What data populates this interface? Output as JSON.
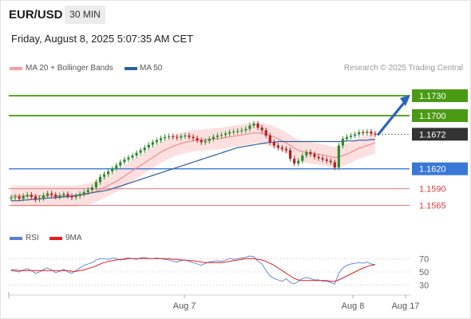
{
  "header": {
    "symbol": "EUR/USD",
    "timeframe": "30 MIN",
    "datetime": "Friday, August 8, 2025 5:07:35 AM CET"
  },
  "legend": {
    "ma20_label": "MA 20 + Bollinger Bands",
    "ma50_label": "MA 50",
    "ma20_color": "#f28b8b",
    "ma50_color": "#2e5fa0",
    "credit": "Research © 2025 Trading Central"
  },
  "rsi_legend": {
    "rsi_label": "RSI",
    "ma_label": "9MA",
    "rsi_color": "#5b7fd6",
    "ma_color": "#e01f1f"
  },
  "colors": {
    "up_candle": "#2c8c2c",
    "down_candle": "#b02020",
    "resistance": "#5aa51e",
    "support": "#3a78d8",
    "lower_support": "#e37b7b",
    "current": "#333333",
    "arrow": "#2863c4"
  },
  "chart_data": [
    {
      "type": "candlestick",
      "pair": "EUR/USD",
      "timeframe": "30 MIN",
      "x_ticks": [
        "Aug 7",
        "Aug 8",
        "Aug 17"
      ],
      "levels": [
        {
          "value": 1.173,
          "label": "1.1730",
          "kind": "resistance"
        },
        {
          "value": 1.17,
          "label": "1.1700",
          "kind": "resistance"
        },
        {
          "value": 1.1672,
          "label": "1.1672",
          "kind": "current"
        },
        {
          "value": 1.162,
          "label": "1.1620",
          "kind": "support"
        },
        {
          "value": 1.159,
          "label": "1.1590",
          "kind": "support"
        },
        {
          "value": 1.1565,
          "label": "1.1565",
          "kind": "support"
        }
      ],
      "ylim": [
        1.155,
        1.176
      ],
      "close": [
        1.1577,
        1.1578,
        1.1575,
        1.1579,
        1.1581,
        1.1578,
        1.1574,
        1.1576,
        1.158,
        1.1583,
        1.1581,
        1.1578,
        1.158,
        1.1582,
        1.1579,
        1.1577,
        1.1579,
        1.1582,
        1.1585,
        1.1588,
        1.1592,
        1.16,
        1.1608,
        1.1612,
        1.1616,
        1.162,
        1.1625,
        1.163,
        1.1634,
        1.1637,
        1.164,
        1.1644,
        1.1648,
        1.1652,
        1.1656,
        1.166,
        1.1663,
        1.1666,
        1.1668,
        1.1669,
        1.1668,
        1.1667,
        1.1669,
        1.167,
        1.1668,
        1.1666,
        1.1663,
        1.166,
        1.1662,
        1.1665,
        1.1668,
        1.167,
        1.1671,
        1.1673,
        1.1675,
        1.1676,
        1.1677,
        1.1678,
        1.168,
        1.1685,
        1.1688,
        1.1682,
        1.1678,
        1.167,
        1.166,
        1.1655,
        1.1652,
        1.165,
        1.1648,
        1.1635,
        1.1628,
        1.1632,
        1.164,
        1.1645,
        1.1642,
        1.1638,
        1.1636,
        1.1634,
        1.1632,
        1.163,
        1.1622,
        1.1655,
        1.1665,
        1.1668,
        1.167,
        1.1672,
        1.1675,
        1.1674,
        1.1676,
        1.1673,
        1.1672
      ],
      "ma20": [
        1.1579,
        1.1579,
        1.1579,
        1.1579,
        1.1579,
        1.1579,
        1.1579,
        1.1579,
        1.1579,
        1.1579,
        1.1579,
        1.1579,
        1.1579,
        1.1579,
        1.1579,
        1.1579,
        1.1579,
        1.158,
        1.1581,
        1.1582,
        1.1584,
        1.1586,
        1.1589,
        1.1592,
        1.1595,
        1.1598,
        1.1601,
        1.1605,
        1.1609,
        1.1613,
        1.1617,
        1.1621,
        1.1625,
        1.1629,
        1.1633,
        1.1637,
        1.1641,
        1.1645,
        1.1648,
        1.1651,
        1.1654,
        1.1656,
        1.1658,
        1.166,
        1.1661,
        1.1662,
        1.1663,
        1.1663,
        1.1664,
        1.1664,
        1.1665,
        1.1665,
        1.1666,
        1.1667,
        1.1668,
        1.1669,
        1.167,
        1.1671,
        1.1672,
        1.1673,
        1.1674,
        1.1674,
        1.1673,
        1.1672,
        1.167,
        1.1668,
        1.1665,
        1.1662,
        1.1659,
        1.1655,
        1.1651,
        1.1648,
        1.1646,
        1.1645,
        1.1644,
        1.1643,
        1.1642,
        1.1641,
        1.164,
        1.1638,
        1.1637,
        1.1638,
        1.164,
        1.1642,
        1.1645,
        1.1648,
        1.1651,
        1.1653,
        1.1655,
        1.1657,
        1.1659
      ],
      "ma50": [
        1.1572,
        1.1572,
        1.1572,
        1.1573,
        1.1573,
        1.1574,
        1.1574,
        1.1575,
        1.1575,
        1.1576,
        1.1576,
        1.1577,
        1.1577,
        1.1578,
        1.1578,
        1.1579,
        1.158,
        1.1581,
        1.1582,
        1.1583,
        1.1584,
        1.1585,
        1.1586,
        1.1587,
        1.1588,
        1.159,
        1.1592,
        1.1594,
        1.1596,
        1.1598,
        1.16,
        1.1602,
        1.1604,
        1.1606,
        1.1608,
        1.161,
        1.1612,
        1.1614,
        1.1616,
        1.1618,
        1.162,
        1.1622,
        1.1624,
        1.1626,
        1.1628,
        1.163,
        1.1632,
        1.1634,
        1.1636,
        1.1638,
        1.164,
        1.1642,
        1.1644,
        1.1646,
        1.1648,
        1.165,
        1.1652,
        1.1653,
        1.1654,
        1.1655,
        1.1656,
        1.1657,
        1.1658,
        1.1659,
        1.166,
        1.166,
        1.1661,
        1.1661,
        1.1661,
        1.1661,
        1.1661,
        1.1661,
        1.1661,
        1.1661,
        1.1661,
        1.1661,
        1.1661,
        1.1661,
        1.1661,
        1.1661,
        1.1661,
        1.1661,
        1.1661,
        1.1662,
        1.1662,
        1.1662,
        1.1663,
        1.1663,
        1.1663,
        1.1664,
        1.1664
      ],
      "bb_width": 0.0016,
      "forecast": {
        "from": 1.1672,
        "to": 1.173
      }
    },
    {
      "type": "line",
      "name": "RSI panel",
      "y_ticks": [
        70,
        50,
        30
      ],
      "ylim": [
        20,
        80
      ],
      "series": [
        {
          "name": "RSI",
          "values": [
            52,
            51,
            50,
            53,
            55,
            52,
            48,
            50,
            54,
            56,
            53,
            49,
            51,
            54,
            50,
            48,
            52,
            56,
            60,
            62,
            64,
            68,
            70,
            70,
            69,
            71,
            70,
            68,
            70,
            71,
            70,
            69,
            71,
            72,
            70,
            70,
            71,
            70,
            69,
            68,
            66,
            65,
            67,
            68,
            66,
            64,
            62,
            60,
            63,
            65,
            66,
            67,
            66,
            68,
            70,
            69,
            70,
            71,
            72,
            74,
            73,
            66,
            62,
            52,
            44,
            40,
            38,
            36,
            40,
            34,
            32,
            36,
            40,
            42,
            40,
            38,
            38,
            36,
            36,
            34,
            32,
            48,
            56,
            60,
            62,
            63,
            64,
            63,
            65,
            62,
            61
          ]
        },
        {
          "name": "9MA",
          "values": [
            53,
            53,
            52,
            52,
            52,
            52,
            52,
            52,
            52,
            52,
            52,
            52,
            52,
            52,
            52,
            51,
            51,
            52,
            53,
            55,
            57,
            59,
            62,
            64,
            66,
            67,
            68,
            69,
            69,
            70,
            70,
            70,
            70,
            70,
            70,
            70,
            70,
            70,
            70,
            70,
            69,
            69,
            68,
            68,
            67,
            67,
            66,
            65,
            64,
            64,
            64,
            64,
            64,
            65,
            66,
            67,
            68,
            69,
            70,
            70,
            70,
            69,
            68,
            66,
            63,
            60,
            56,
            52,
            48,
            44,
            40,
            38,
            37,
            37,
            37,
            37,
            37,
            37,
            37,
            36,
            36,
            38,
            41,
            44,
            47,
            50,
            53,
            56,
            58,
            60,
            61
          ]
        }
      ]
    }
  ]
}
